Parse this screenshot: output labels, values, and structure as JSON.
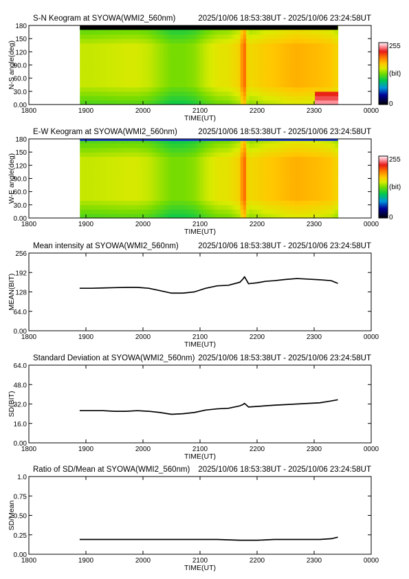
{
  "chart_data": [
    {
      "type": "heatmap",
      "title": "S-N Keogram at SYOWA(WMI2_560nm)",
      "time_range": "2025/10/06 18:53:38UT - 2025/10/06 23:24:58UT",
      "xlabel": "TIME(UT)",
      "ylabel": "N-S angle(deg)",
      "x_ticks": [
        "1800",
        "1900",
        "2000",
        "2100",
        "2200",
        "2300",
        "0000"
      ],
      "y_ticks": [
        "0.00",
        "30.0",
        "60.0",
        "90.0",
        "120",
        "150",
        "180"
      ],
      "xlim_hours": [
        18.0,
        24.0
      ],
      "ylim": [
        0,
        180
      ],
      "data_start_hours": 18.894,
      "data_end_hours": 23.416,
      "colorbar": {
        "min_label": "0",
        "max_label": "255",
        "unit": "(bit)"
      },
      "top_black_band_deg": [
        170,
        180
      ],
      "profile_hours": [
        18.89,
        19.1,
        19.3,
        19.5,
        19.7,
        19.9,
        20.1,
        20.3,
        20.5,
        20.7,
        20.9,
        21.1,
        21.3,
        21.5,
        21.7,
        21.75,
        21.78,
        21.85,
        22.0,
        22.15,
        22.3,
        22.5,
        22.7,
        22.9,
        23.1,
        23.3,
        23.416
      ],
      "profile_mean_bit": [
        140,
        140,
        141,
        142,
        143,
        143,
        140,
        132,
        124,
        124,
        128,
        140,
        148,
        150,
        160,
        170,
        178,
        155,
        158,
        163,
        165,
        169,
        172,
        170,
        168,
        165,
        156
      ]
    },
    {
      "type": "heatmap",
      "title": "E-W Keogram at SYOWA(WMI2_560nm)",
      "time_range": "2025/10/06 18:53:38UT - 2025/10/06 23:24:58UT",
      "xlabel": "TIME(UT)",
      "ylabel": "W-E angle(deg)",
      "x_ticks": [
        "1800",
        "1900",
        "2000",
        "2100",
        "2200",
        "2300",
        "0000"
      ],
      "y_ticks": [
        "0.00",
        "30.0",
        "60.0",
        "90.0",
        "120",
        "150",
        "180"
      ],
      "xlim_hours": [
        18.0,
        24.0
      ],
      "ylim": [
        0,
        180
      ],
      "data_start_hours": 18.894,
      "data_end_hours": 23.416,
      "colorbar": {
        "min_label": "0",
        "max_label": "255",
        "unit": "(bit)"
      }
    },
    {
      "type": "line",
      "title": "Mean intensity at SYOWA(WMI2_560nm)",
      "time_range": "2025/10/06 18:53:38UT - 2025/10/06 23:24:58UT",
      "xlabel": "TIME(UT)",
      "ylabel": "MEAN(BIT)",
      "x_ticks": [
        "1800",
        "1900",
        "2000",
        "2100",
        "2200",
        "2300",
        "0000"
      ],
      "y_ticks": [
        "0.00",
        "64.0",
        "128",
        "192",
        "256"
      ],
      "xlim_hours": [
        18.0,
        24.0
      ],
      "ylim": [
        0,
        256
      ],
      "x_hours": [
        18.89,
        19.1,
        19.3,
        19.5,
        19.7,
        19.9,
        20.1,
        20.3,
        20.5,
        20.7,
        20.9,
        21.1,
        21.3,
        21.5,
        21.7,
        21.75,
        21.78,
        21.85,
        22.0,
        22.15,
        22.3,
        22.5,
        22.7,
        22.9,
        23.1,
        23.3,
        23.416
      ],
      "values": [
        140,
        140,
        141,
        142,
        143,
        143,
        140,
        132,
        124,
        124,
        128,
        140,
        148,
        150,
        160,
        170,
        178,
        155,
        158,
        163,
        165,
        169,
        172,
        170,
        168,
        165,
        156
      ]
    },
    {
      "type": "line",
      "title": "Standard Deviation at SYOWA(WMI2_560nm)",
      "time_range": "2025/10/06 18:53:38UT - 2025/10/06 23:24:58UT",
      "xlabel": "TIME(UT)",
      "ylabel": "SD(BIT)",
      "x_ticks": [
        "1800",
        "1900",
        "2000",
        "2100",
        "2200",
        "2300",
        "0000"
      ],
      "y_ticks": [
        "0.00",
        "16.0",
        "32.0",
        "48.0",
        "64.0"
      ],
      "xlim_hours": [
        18.0,
        24.0
      ],
      "ylim": [
        0,
        64
      ],
      "x_hours": [
        18.89,
        19.1,
        19.3,
        19.5,
        19.7,
        19.9,
        20.1,
        20.3,
        20.5,
        20.7,
        20.9,
        21.1,
        21.3,
        21.5,
        21.7,
        21.75,
        21.78,
        21.85,
        22.0,
        22.15,
        22.3,
        22.5,
        22.7,
        22.9,
        23.1,
        23.3,
        23.416
      ],
      "values": [
        26.5,
        26.5,
        26.5,
        26.0,
        26.0,
        26.5,
        26.0,
        25.0,
        23.5,
        24.0,
        25.0,
        27.0,
        28.0,
        28.5,
        30.5,
        31.5,
        32.5,
        29.5,
        30.0,
        30.5,
        31.0,
        31.5,
        32.0,
        32.5,
        33.0,
        34.5,
        35.5
      ]
    },
    {
      "type": "line",
      "title": "Ratio of SD/Mean at SYOWA(WMI2_560nm)",
      "time_range": "2025/10/06 18:53:38UT - 2025/10/06 23:24:58UT",
      "xlabel": "TIME(UT)",
      "ylabel": "SD/Mean",
      "x_ticks": [
        "1800",
        "1900",
        "2000",
        "2100",
        "2200",
        "2300",
        "0000"
      ],
      "y_ticks": [
        "0.00",
        "0.25",
        "0.50",
        "0.75",
        "1.0"
      ],
      "xlim_hours": [
        18.0,
        24.0
      ],
      "ylim": [
        0,
        1.0
      ],
      "x_hours": [
        18.89,
        19.3,
        19.7,
        20.1,
        20.5,
        20.9,
        21.3,
        21.7,
        22.0,
        22.3,
        22.7,
        23.1,
        23.3,
        23.416
      ],
      "values": [
        0.19,
        0.19,
        0.19,
        0.19,
        0.19,
        0.19,
        0.19,
        0.18,
        0.18,
        0.19,
        0.19,
        0.19,
        0.2,
        0.22
      ]
    }
  ]
}
